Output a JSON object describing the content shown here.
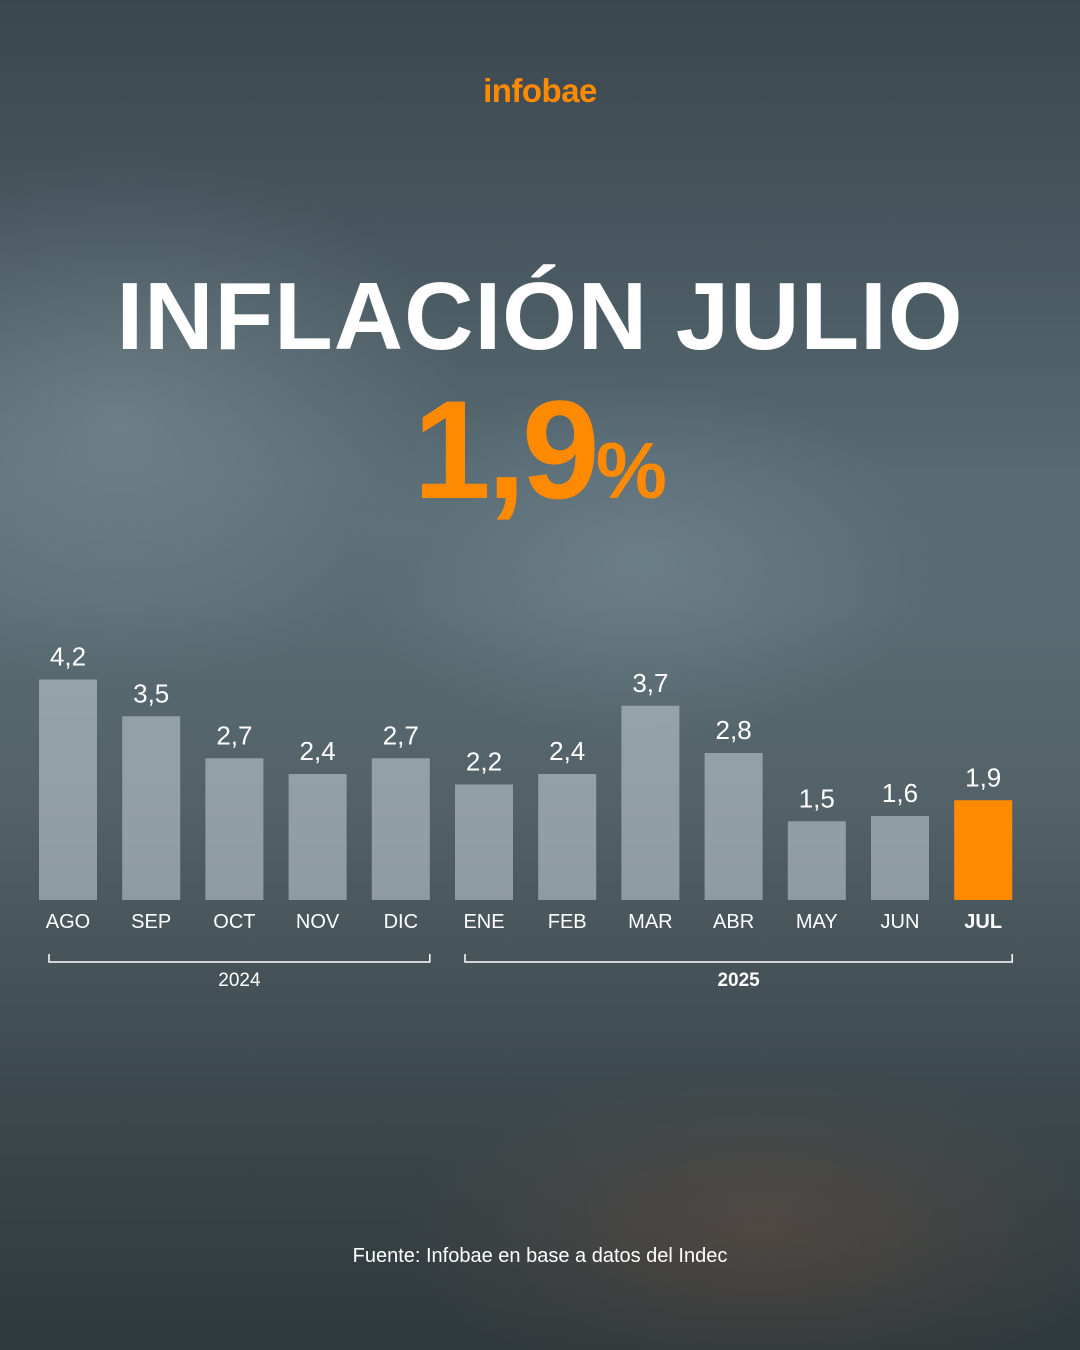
{
  "brand": "infobae",
  "title": "INFLACIÓN JULIO",
  "headline": {
    "value": "1,9",
    "unit": "%"
  },
  "source": "Fuente: Infobae en base a datos del Indec",
  "colors": {
    "accent": "#ff8a00",
    "bar": "#c9d1da",
    "text": "#ffffff"
  },
  "chart_data": {
    "type": "bar",
    "categories": [
      "AGO",
      "SEP",
      "OCT",
      "NOV",
      "DIC",
      "ENE",
      "FEB",
      "MAR",
      "ABR",
      "MAY",
      "JUN",
      "JUL"
    ],
    "values": [
      4.2,
      3.5,
      2.7,
      2.4,
      2.7,
      2.2,
      2.4,
      3.7,
      2.8,
      1.5,
      1.6,
      1.9
    ],
    "value_labels": [
      "4,2",
      "3,5",
      "2,7",
      "2,4",
      "2,7",
      "2,2",
      "2,4",
      "3,7",
      "2,8",
      "1,5",
      "1,6",
      "1,9"
    ],
    "highlight": "JUL",
    "groups": [
      {
        "label": "2024",
        "from": "AGO",
        "to": "DIC"
      },
      {
        "label": "2025",
        "from": "ENE",
        "to": "JUL"
      }
    ],
    "grid": false,
    "legend": "none"
  }
}
